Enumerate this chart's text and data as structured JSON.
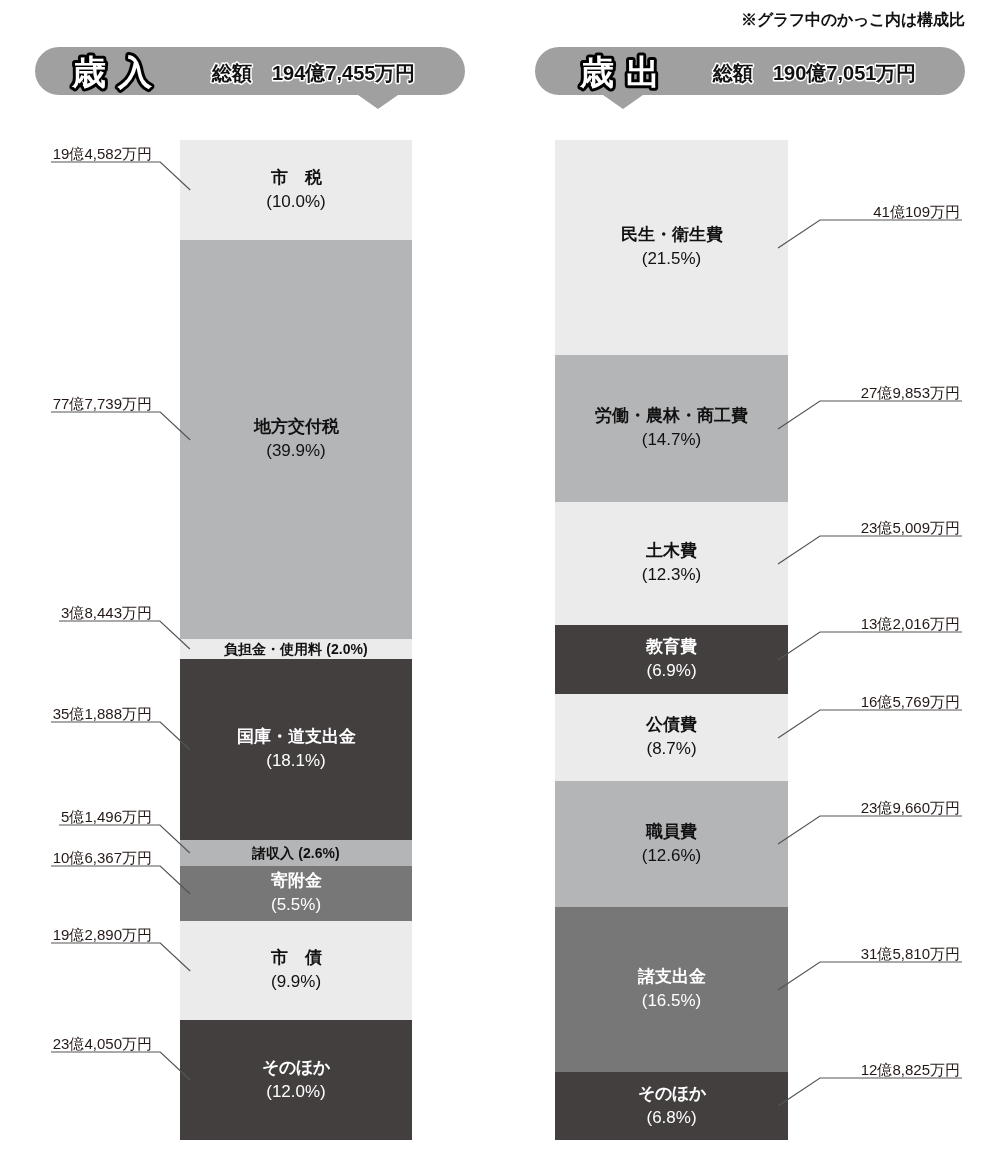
{
  "chart_data": [
    {
      "type": "bar",
      "title": "歳入",
      "subtitle": "総額　194億7,455万円",
      "categories": [
        null
      ],
      "stacked": true,
      "series": [
        {
          "name": "そのほか",
          "color": "#433f3f",
          "values": [
            12.0
          ],
          "value_labels": [
            "(12.0%)"
          ]
        },
        {
          "name": "市　債",
          "color": "#ebebeb",
          "values": [
            9.9
          ],
          "value_labels": [
            "(9.9%)"
          ]
        },
        {
          "name": "寄附金",
          "color": "#777777",
          "values": [
            5.5
          ],
          "value_labels": [
            "(5.5%)"
          ]
        },
        {
          "name": "諸収入",
          "color": "#b4b5b7",
          "values": [
            2.6
          ],
          "value_labels": [
            "(2.6%)"
          ]
        },
        {
          "name": "国庫・道支出金",
          "color": "#433f3f",
          "values": [
            18.1
          ],
          "value_labels": [
            "(18.1%)"
          ]
        },
        {
          "name": "負担金・使用料",
          "color": "#ebebeb",
          "values": [
            2.0
          ],
          "value_labels": [
            "(2.0%)"
          ]
        },
        {
          "name": "地方交付税",
          "color": "#b4b5b7",
          "values": [
            39.9
          ],
          "value_labels": [
            "(39.9%)"
          ]
        },
        {
          "name": "市　税",
          "color": "#ebebeb",
          "values": [
            10.0
          ],
          "value_labels": [
            "(10.0%)"
          ]
        }
      ],
      "annotations": [
        "19億4,582万円",
        "77億7,739万円",
        "3億8,443万円",
        "35億1,888万円",
        "5億1,496万円",
        "10億6,367万円",
        "19億2,890万円",
        "23億4,050万円"
      ]
    },
    {
      "type": "bar",
      "title": "歳出",
      "subtitle": "総額　190億7,051万円",
      "categories": [
        null
      ],
      "stacked": true,
      "series": [
        {
          "name": "そのほか",
          "color": "#433f3f",
          "values": [
            6.8
          ],
          "value_labels": [
            "(6.8%)"
          ]
        },
        {
          "name": "諸支出金",
          "color": "#777777",
          "values": [
            16.5
          ],
          "value_labels": [
            "(16.5%)"
          ]
        },
        {
          "name": "職員費",
          "color": "#b4b5b7",
          "values": [
            12.6
          ],
          "value_labels": [
            "(12.6%)"
          ]
        },
        {
          "name": "公債費",
          "color": "#ebebeb",
          "values": [
            8.7
          ],
          "value_labels": [
            "(8.7%)"
          ]
        },
        {
          "name": "教育費",
          "color": "#433f3f",
          "values": [
            6.9
          ],
          "value_labels": [
            "(6.9%)"
          ]
        },
        {
          "name": "土木費",
          "color": "#ebebeb",
          "values": [
            12.3
          ],
          "value_labels": [
            "(12.3%)"
          ]
        },
        {
          "name": "労働・農林・商工費",
          "color": "#b4b5b7",
          "values": [
            14.7
          ],
          "value_labels": [
            "(14.7%)"
          ]
        },
        {
          "name": "民生・衛生費",
          "color": "#ebebeb",
          "values": [
            21.5
          ],
          "value_labels": [
            "(21.5%)"
          ]
        }
      ],
      "annotations": [
        "41億109万円",
        "27億9,853万円",
        "23億5,009万円",
        "13億2,016万円",
        "16億5,769万円",
        "23億9,660万円",
        "31億5,810万円",
        "12億8,825万円",
        "※グラフ中のかっこ内は構成比"
      ]
    }
  ]
}
